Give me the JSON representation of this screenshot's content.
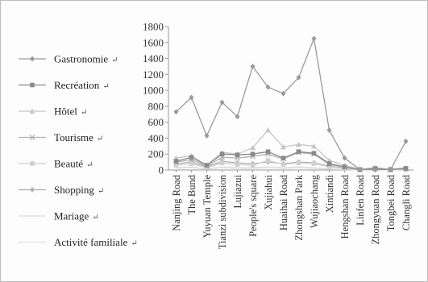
{
  "chart_data": {
    "type": "line",
    "categories": [
      "Nanjing Road",
      "The Bund",
      "Yuyuan Temple",
      "Tianzi subdivision",
      "Lujiazui",
      "People's square",
      "Xujiahui",
      "Huaihai Road",
      "Zhongshan Park",
      "Wujiaochang",
      "Xintiandi",
      "Hengshan Road",
      "Linfen Road",
      "Zhongyuan Road",
      "Tongbei Road",
      "Changli Road"
    ],
    "ylim": [
      0,
      1800
    ],
    "yticks": [
      0,
      200,
      400,
      600,
      800,
      1000,
      1200,
      1400,
      1600,
      1800
    ],
    "grid": false,
    "legend_position": "left",
    "legend_mark": "↵",
    "series": [
      {
        "name": "Gastronomie",
        "color": "#9a9a9a",
        "marker": "diamond",
        "values": [
          730,
          910,
          430,
          850,
          670,
          1300,
          1040,
          960,
          1160,
          1650,
          500,
          150,
          5,
          5,
          5,
          360
        ]
      },
      {
        "name": "Recréation",
        "color": "#8a8a8a",
        "marker": "square",
        "values": [
          110,
          160,
          60,
          200,
          190,
          200,
          230,
          150,
          230,
          210,
          80,
          40,
          5,
          20,
          5,
          20
        ]
      },
      {
        "name": "Hôtel",
        "color": "#c6c6c6",
        "marker": "triangle",
        "values": [
          150,
          180,
          60,
          220,
          200,
          280,
          500,
          290,
          320,
          300,
          120,
          60,
          10,
          30,
          10,
          30
        ]
      },
      {
        "name": "Tourisme",
        "color": "#b2b2b2",
        "marker": "x",
        "values": [
          100,
          130,
          50,
          160,
          150,
          170,
          200,
          140,
          220,
          200,
          70,
          30,
          5,
          15,
          5,
          15
        ]
      },
      {
        "name": "Beauté",
        "color": "#cfcfcf",
        "marker": "square",
        "values": [
          60,
          80,
          30,
          90,
          70,
          60,
          120,
          70,
          90,
          80,
          40,
          20,
          5,
          10,
          5,
          10
        ]
      },
      {
        "name": "Shopping",
        "color": "#b0b0b0",
        "marker": "diamond",
        "values": [
          80,
          100,
          40,
          110,
          90,
          80,
          100,
          80,
          100,
          90,
          50,
          20,
          5,
          10,
          5,
          10
        ]
      },
      {
        "name": "Mariage",
        "color": "#dcdcdc",
        "marker": "none",
        "values": [
          20,
          30,
          10,
          30,
          20,
          20,
          30,
          20,
          30,
          20,
          10,
          5,
          2,
          5,
          2,
          5
        ]
      },
      {
        "name": "Activité familiale",
        "color": "#e4e4e4",
        "marker": "none",
        "values": [
          30,
          40,
          15,
          40,
          30,
          30,
          40,
          30,
          40,
          30,
          15,
          8,
          3,
          5,
          3,
          5
        ]
      }
    ]
  }
}
